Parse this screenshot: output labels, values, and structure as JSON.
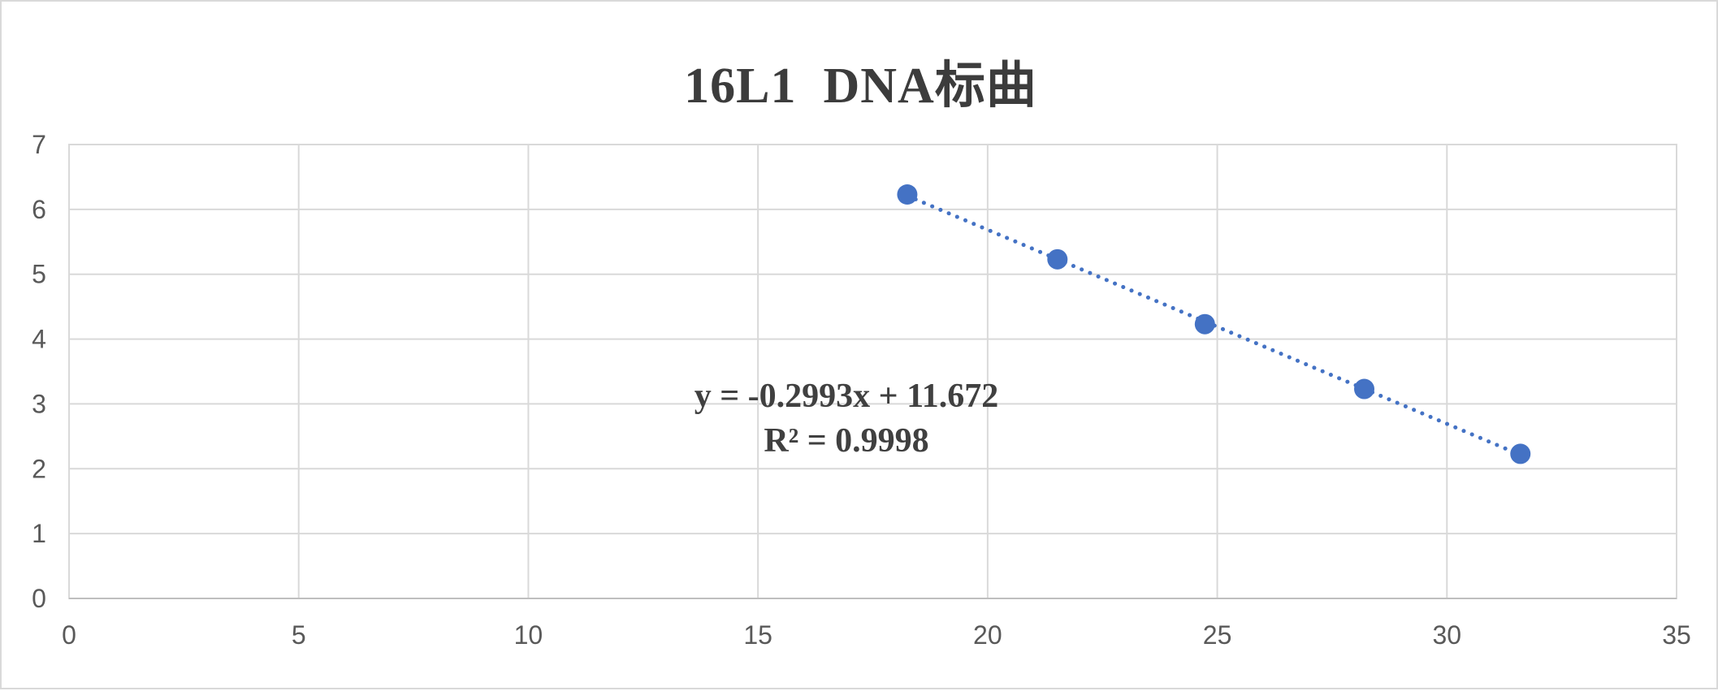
{
  "chart_data": {
    "type": "scatter",
    "title": "16L1  DNA标曲",
    "xlabel": "",
    "ylabel": "",
    "xlim": [
      0,
      35
    ],
    "ylim": [
      0,
      7
    ],
    "x_ticks": [
      0,
      5,
      10,
      15,
      20,
      25,
      30,
      35
    ],
    "y_ticks": [
      0,
      1,
      2,
      3,
      4,
      5,
      6,
      7
    ],
    "grid": true,
    "legend": "none",
    "series": [
      {
        "color": "#4472c4",
        "points": [
          {
            "x": 18.25,
            "y": 6.23
          },
          {
            "x": 21.52,
            "y": 5.23
          },
          {
            "x": 24.73,
            "y": 4.23
          },
          {
            "x": 28.2,
            "y": 3.23
          },
          {
            "x": 31.6,
            "y": 2.23
          }
        ]
      }
    ],
    "trendline": {
      "type": "linear",
      "slope": -0.2993,
      "intercept": 11.672,
      "equation": "y = -0.2993x + 11.672",
      "r_squared": "R² = 0.9998",
      "style": "dotted",
      "color": "#4472c4"
    }
  }
}
